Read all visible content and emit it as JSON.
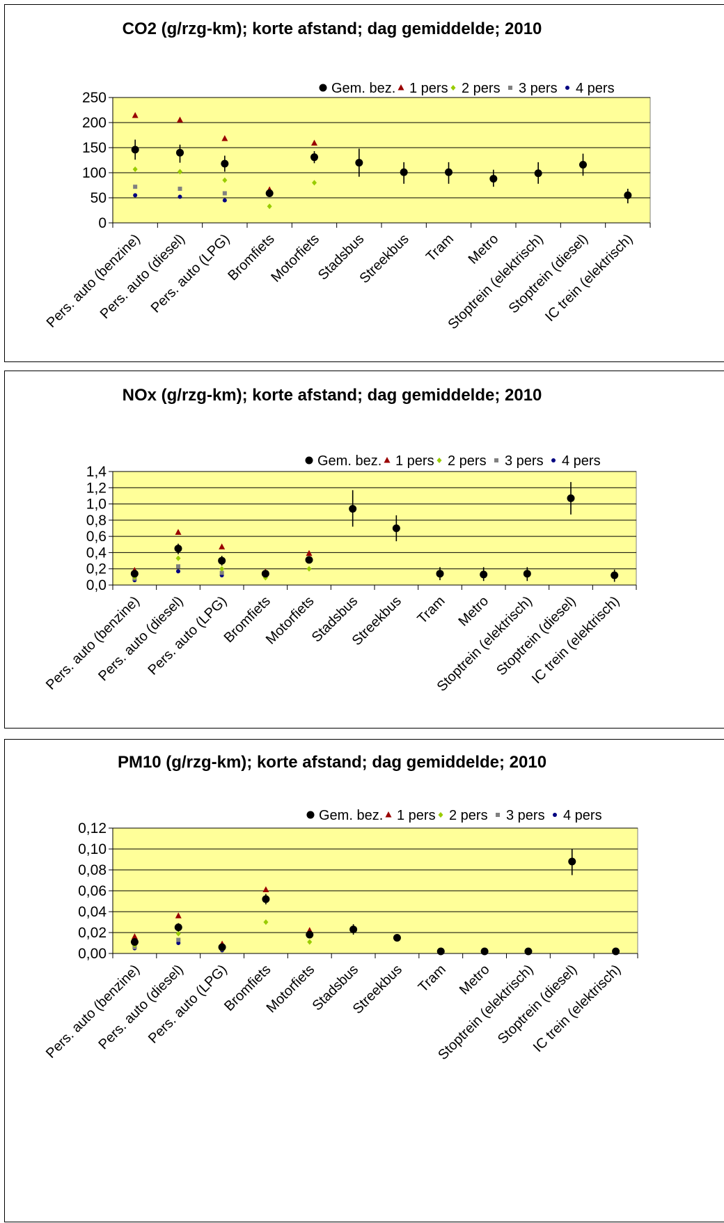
{
  "colors": {
    "plot_bg": "#FFFF99",
    "gem_bez": "#000000",
    "pers1": "#990000",
    "pers2": "#99CC00",
    "pers3": "#808080",
    "pers4": "#000080"
  },
  "legend": {
    "items": [
      {
        "label": "Gem. bez.",
        "marker": "circle",
        "color": "#000000"
      },
      {
        "label": "1 pers",
        "marker": "triangle",
        "color": "#990000"
      },
      {
        "label": "2 pers",
        "marker": "diamond",
        "color": "#99CC00"
      },
      {
        "label": "3 pers",
        "marker": "square",
        "color": "#808080"
      },
      {
        "label": "4 pers",
        "marker": "circle-small",
        "color": "#000080"
      }
    ]
  },
  "chart_data": [
    {
      "type": "scatter",
      "title": "CO2 (g/rzg-km); korte afstand; dag gemiddelde; 2010",
      "categories": [
        "Pers. auto (benzine)",
        "Pers. auto (diesel)",
        "Pers. auto (LPG)",
        "Bromfiets",
        "Motorfiets",
        "Stadsbus",
        "Streekbus",
        "Tram",
        "Metro",
        "Stoptrein (elektrisch)",
        "Stoptrein (diesel)",
        "IC trein (elektrisch)"
      ],
      "ylim": [
        0,
        250
      ],
      "yticks": [
        "0",
        "50",
        "100",
        "150",
        "200",
        "250"
      ],
      "ytick_values": [
        0,
        50,
        100,
        150,
        200,
        250
      ],
      "grid": true,
      "series": [
        {
          "name": "Gem. bez.",
          "values": [
            146,
            140,
            118,
            59,
            131,
            120,
            101,
            101,
            88,
            99,
            116,
            55
          ],
          "err_low": [
            126,
            120,
            102,
            53,
            119,
            92,
            78,
            78,
            72,
            78,
            94,
            39
          ],
          "err_high": [
            166,
            156,
            134,
            66,
            143,
            148,
            121,
            121,
            106,
            121,
            138,
            68
          ]
        },
        {
          "name": "1 pers",
          "values": [
            214,
            205,
            168,
            66,
            159,
            null,
            null,
            null,
            null,
            null,
            null,
            null
          ]
        },
        {
          "name": "2 pers",
          "values": [
            107,
            102,
            85,
            33,
            80,
            null,
            null,
            null,
            null,
            null,
            null,
            null
          ]
        },
        {
          "name": "3 pers",
          "values": [
            72,
            68,
            59,
            null,
            null,
            null,
            null,
            null,
            null,
            null,
            null,
            null
          ]
        },
        {
          "name": "4 pers",
          "values": [
            55,
            52,
            45,
            null,
            null,
            null,
            null,
            null,
            null,
            null,
            null,
            null
          ]
        }
      ]
    },
    {
      "type": "scatter",
      "title": "NOx (g/rzg-km); korte afstand; dag gemiddelde; 2010",
      "categories": [
        "Pers. auto (benzine)",
        "Pers. auto (diesel)",
        "Pers. auto (LPG)",
        "Bromfiets",
        "Motorfiets",
        "Stadsbus",
        "Streekbus",
        "Tram",
        "Metro",
        "Stoptrein (elektrisch)",
        "Stoptrein (diesel)",
        "IC trein (elektrisch)"
      ],
      "ylim": [
        0,
        1.4
      ],
      "yticks": [
        "0,0",
        "0,2",
        "0,4",
        "0,6",
        "0,8",
        "1,0",
        "1,2",
        "1,4"
      ],
      "ytick_values": [
        0,
        0.2,
        0.4,
        0.6,
        0.8,
        1.0,
        1.2,
        1.4
      ],
      "grid": true,
      "series": [
        {
          "name": "Gem. bez.",
          "values": [
            0.14,
            0.45,
            0.3,
            0.14,
            0.31,
            0.94,
            0.7,
            0.14,
            0.13,
            0.14,
            1.07,
            0.12
          ],
          "err_low": [
            0.11,
            0.38,
            0.24,
            0.12,
            0.27,
            0.72,
            0.54,
            0.06,
            0.05,
            0.05,
            0.87,
            0.04
          ],
          "err_high": [
            0.17,
            0.51,
            0.36,
            0.16,
            0.35,
            1.17,
            0.86,
            0.22,
            0.22,
            0.22,
            1.27,
            0.19
          ]
        },
        {
          "name": "1 pers",
          "values": [
            0.18,
            0.65,
            0.47,
            0.16,
            0.39,
            null,
            null,
            null,
            null,
            null,
            null,
            null
          ]
        },
        {
          "name": "2 pers",
          "values": [
            0.1,
            0.33,
            0.2,
            0.09,
            0.2,
            null,
            null,
            null,
            null,
            null,
            null,
            null
          ]
        },
        {
          "name": "3 pers",
          "values": [
            0.08,
            0.23,
            0.15,
            null,
            null,
            null,
            null,
            null,
            null,
            null,
            null,
            null
          ]
        },
        {
          "name": "4 pers",
          "values": [
            0.06,
            0.17,
            0.12,
            null,
            null,
            null,
            null,
            null,
            null,
            null,
            null,
            null
          ]
        }
      ]
    },
    {
      "type": "scatter",
      "title": "PM10 (g/rzg-km); korte afstand; dag gemiddelde; 2010",
      "categories": [
        "Pers. auto (benzine)",
        "Pers. auto (diesel)",
        "Pers. auto (LPG)",
        "Bromfiets",
        "Motorfiets",
        "Stadsbus",
        "Streekbus",
        "Tram",
        "Metro",
        "Stoptrein (elektrisch)",
        "Stoptrein (diesel)",
        "IC trein (elektrisch)"
      ],
      "ylim": [
        0,
        0.12
      ],
      "yticks": [
        "0,00",
        "0,02",
        "0,04",
        "0,06",
        "0,08",
        "0,10",
        "0,12"
      ],
      "ytick_values": [
        0,
        0.02,
        0.04,
        0.06,
        0.08,
        0.1,
        0.12
      ],
      "grid": true,
      "series": [
        {
          "name": "Gem. bez.",
          "values": [
            0.011,
            0.025,
            0.006,
            0.052,
            0.018,
            0.023,
            0.015,
            0.002,
            0.002,
            0.002,
            0.088,
            0.002
          ],
          "err_low": [
            0.009,
            0.021,
            0.005,
            0.047,
            0.015,
            0.018,
            0.012,
            null,
            null,
            null,
            0.075,
            null
          ],
          "err_high": [
            0.013,
            0.029,
            0.007,
            0.057,
            0.021,
            0.028,
            0.018,
            null,
            null,
            null,
            0.1,
            null
          ]
        },
        {
          "name": "1 pers",
          "values": [
            0.016,
            0.036,
            0.009,
            0.061,
            0.022,
            null,
            null,
            null,
            null,
            null,
            null,
            null
          ]
        },
        {
          "name": "2 pers",
          "values": [
            0.008,
            0.019,
            0.005,
            0.03,
            0.011,
            null,
            null,
            null,
            null,
            null,
            null,
            null
          ]
        },
        {
          "name": "3 pers",
          "values": [
            0.006,
            0.013,
            0.004,
            null,
            null,
            null,
            null,
            null,
            null,
            null,
            null,
            null
          ]
        },
        {
          "name": "4 pers",
          "values": [
            0.005,
            0.01,
            0.003,
            null,
            null,
            null,
            null,
            null,
            null,
            null,
            null,
            null
          ]
        }
      ]
    }
  ]
}
